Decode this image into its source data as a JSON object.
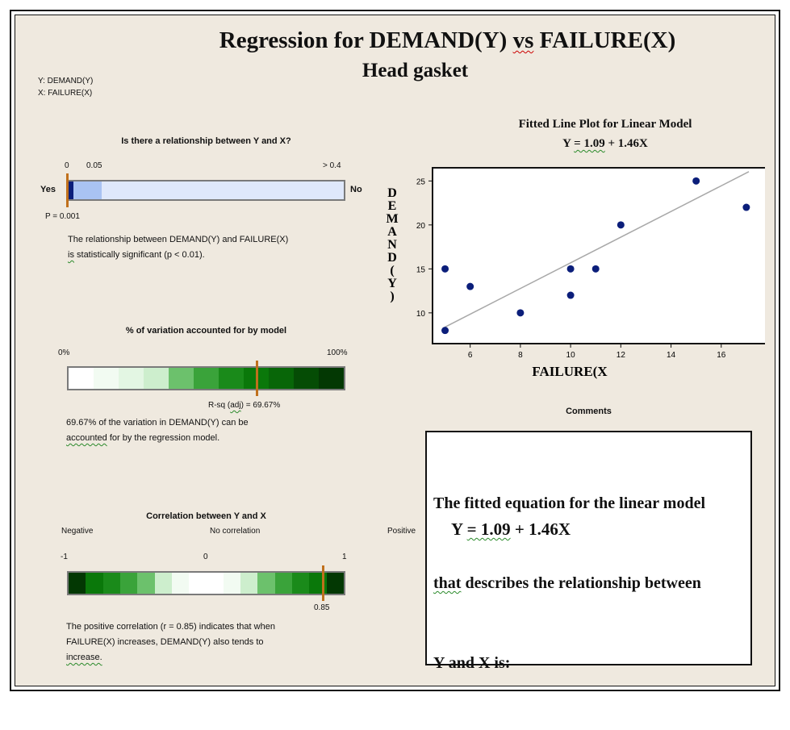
{
  "report": {
    "title": "Regression for DEMAND(Y) vs FAILURE(X)",
    "title_parts": {
      "pre": "Regression for DEMAND(Y) ",
      "vs": "vs",
      "post": " FAILURE(X)"
    },
    "subtitle": "Head gasket",
    "var_y": "Y: DEMAND(Y)",
    "var_x": "X: FAILURE(X)"
  },
  "relationship": {
    "title": "Is there a relationship between Y and X?",
    "tick_0": "0",
    "tick_05": "0.05",
    "tick_right": "> 0.4",
    "yes_label": "Yes",
    "no_label": "No",
    "p_label": "P = 0.001",
    "p_value": 0.001,
    "bar_fill_fraction": 0.12,
    "text_line1": "The relationship between DEMAND(Y) and FAILURE(X)",
    "text_line2_pre": "is",
    "text_line2_rest": " statistically significant (p < 0.01).",
    "colors": {
      "fill": "#a9c3f2",
      "background": "#dfe8fb",
      "dark": "#0b1e7a"
    }
  },
  "variation": {
    "title": "% of variation accounted for by model",
    "tick_left": "0%",
    "tick_right": "100%",
    "rsq_label_pre": "R-sq (",
    "rsq_label_adj": "adj",
    "rsq_label_post": ") = 69.67%",
    "rsq_value": 69.67,
    "text_line1": "69.67% of the variation in DEMAND(Y) can be",
    "text_line2_pre": "accounted",
    "text_line2_rest": " for by the regression model.",
    "gradient": [
      "#ffffff",
      "#f2fbf2",
      "#e3f6e3",
      "#cdeecd",
      "#6cc16c",
      "#3aa33a",
      "#1a8a1a",
      "#0a780a",
      "#086608",
      "#054c05",
      "#033803"
    ]
  },
  "correlation": {
    "title": "Correlation between Y and X",
    "left_label": "Negative",
    "mid_label": "No correlation",
    "right_label": "Positive",
    "tick_left": "-1",
    "tick_mid": "0",
    "tick_right": "1",
    "r_label": "0.85",
    "r_value": 0.85,
    "text_line1": "The positive correlation (r = 0.85) indicates that when",
    "text_line2": "FAILURE(X) increases, DEMAND(Y) also tends to",
    "text_line3": "increase.",
    "gradient": [
      "#033803",
      "#0a780a",
      "#1a8a1a",
      "#3aa33a",
      "#6cc16c",
      "#cdeecd",
      "#f2fbf2",
      "#ffffff",
      "#ffffff",
      "#f2fbf2",
      "#cdeecd",
      "#6cc16c",
      "#3aa33a",
      "#1a8a1a",
      "#0a780a",
      "#033803"
    ]
  },
  "plot": {
    "title": "Fitted Line Plot for Linear Model",
    "equation": "Y = 1.09 + 1.46X",
    "eq_pre": "Y ",
    "eq_squig": "= 1.09",
    "eq_post": " + 1.46X"
  },
  "chart_data": {
    "type": "scatter",
    "title": "Fitted Line Plot for Linear Model",
    "subtitle": "Y = 1.09 + 1.46X",
    "xlabel": "FAILURE(X",
    "ylabel": "DEMAND(Y)",
    "xlim": [
      4.5,
      18
    ],
    "ylim": [
      6.5,
      26.5
    ],
    "xticks": [
      6,
      8,
      10,
      12,
      14,
      16
    ],
    "yticks": [
      10,
      15,
      20,
      25
    ],
    "points": [
      {
        "x": 5,
        "y": 8
      },
      {
        "x": 5,
        "y": 15
      },
      {
        "x": 6,
        "y": 13
      },
      {
        "x": 8,
        "y": 10
      },
      {
        "x": 10,
        "y": 12
      },
      {
        "x": 10,
        "y": 15
      },
      {
        "x": 11,
        "y": 15
      },
      {
        "x": 12,
        "y": 20
      },
      {
        "x": 15,
        "y": 25
      },
      {
        "x": 17,
        "y": 22
      }
    ],
    "fit": {
      "intercept": 1.09,
      "slope": 1.46,
      "x_range": [
        5,
        17.1
      ]
    },
    "colors": {
      "points": "#0b1e7a",
      "line": "#a8a8a8"
    },
    "grid": false
  },
  "comments": {
    "title": "Comments",
    "line1": "The fitted equation for the linear model",
    "line2_pre": "that",
    "line2_rest": " describes the relationship between",
    "line3": "Y and X is:",
    "eq_pre": "Y ",
    "eq_squig": "= 1.09",
    "eq_post": " + 1.46X"
  }
}
